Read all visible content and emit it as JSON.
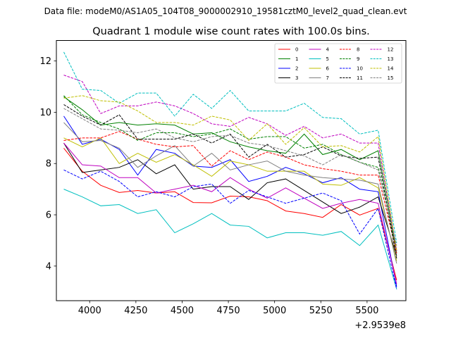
{
  "chart_data": {
    "type": "line",
    "suptitle": "Data file: modeM0/AS1A05_104T08_9000002910_19581cztM0_level2_quad_clean.evt",
    "title": "Quadrant 1 module wise count rates with 100.0s bins.",
    "xlabel": "",
    "ylabel": "",
    "x_offset_label": "+2.9539e8",
    "xlim": [
      3820,
      5710
    ],
    "ylim": [
      2.65,
      12.8
    ],
    "xticks": [
      4000,
      4250,
      4500,
      4750,
      5000,
      5250,
      5500
    ],
    "yticks": [
      4,
      6,
      8,
      10,
      12
    ],
    "grid": false,
    "legend_position": "top-right",
    "x": [
      3860,
      3960,
      4060,
      4160,
      4260,
      4360,
      4460,
      4560,
      4660,
      4760,
      4860,
      4960,
      5060,
      5160,
      5260,
      5360,
      5460,
      5560,
      5660
    ],
    "series": [
      {
        "name": "0",
        "color": "#ff0000",
        "dash": "solid",
        "values": [
          8.6,
          7.7,
          7.15,
          6.87,
          6.95,
          6.85,
          6.9,
          6.48,
          6.47,
          6.73,
          6.7,
          6.55,
          6.15,
          6.05,
          5.9,
          6.4,
          5.99,
          6.25,
          3.45
        ]
      },
      {
        "name": "1",
        "color": "#008000",
        "dash": "solid",
        "values": [
          10.6,
          10.1,
          9.5,
          9.6,
          9.5,
          9.55,
          9.5,
          9.15,
          9.2,
          8.85,
          8.65,
          8.5,
          8.4,
          9.15,
          8.35,
          8.55,
          8.15,
          8.5,
          4.5
        ]
      },
      {
        "name": "2",
        "color": "#0000ff",
        "dash": "solid",
        "values": [
          9.85,
          8.75,
          8.95,
          8.55,
          7.55,
          8.55,
          8.4,
          7.9,
          7.85,
          8.15,
          7.3,
          7.5,
          7.85,
          7.6,
          7.25,
          7.45,
          7.0,
          6.9,
          3.2
        ]
      },
      {
        "name": "3",
        "color": "#000000",
        "dash": "solid",
        "values": [
          8.8,
          7.65,
          7.75,
          7.85,
          8.15,
          7.6,
          7.95,
          7.0,
          7.1,
          7.1,
          6.6,
          7.25,
          7.4,
          6.95,
          6.5,
          6.05,
          6.3,
          6.7,
          4.4
        ]
      },
      {
        "name": "4",
        "color": "#bf00bf",
        "dash": "solid",
        "values": [
          8.8,
          7.95,
          7.9,
          7.45,
          7.45,
          6.85,
          7.0,
          7.15,
          6.9,
          7.45,
          7.0,
          6.65,
          7.05,
          6.65,
          6.25,
          6.45,
          6.6,
          6.45,
          3.3
        ]
      },
      {
        "name": "5",
        "color": "#00bfbf",
        "dash": "solid",
        "values": [
          7.0,
          6.7,
          6.35,
          6.4,
          6.05,
          6.2,
          5.3,
          5.65,
          6.05,
          5.6,
          5.55,
          5.1,
          5.3,
          5.3,
          5.2,
          5.35,
          4.8,
          5.6,
          3.1
        ]
      },
      {
        "name": "6",
        "color": "#bfbf00",
        "dash": "solid",
        "values": [
          9.0,
          8.65,
          9.0,
          8.0,
          8.4,
          8.05,
          8.35,
          7.95,
          7.5,
          8.1,
          7.95,
          7.7,
          7.7,
          7.7,
          7.2,
          7.15,
          7.45,
          7.05,
          4.2
        ]
      },
      {
        "name": "7",
        "color": "#808080",
        "dash": "solid",
        "values": [
          9.6,
          8.85,
          8.9,
          8.6,
          7.85,
          8.3,
          8.7,
          7.9,
          8.4,
          7.75,
          7.95,
          8.1,
          7.7,
          7.55,
          7.45,
          7.4,
          7.35,
          7.2,
          4.1
        ]
      },
      {
        "name": "8",
        "color": "#ff0000",
        "dash": "dashed",
        "values": [
          8.9,
          9.0,
          9.0,
          9.25,
          8.95,
          8.75,
          8.65,
          8.7,
          7.9,
          8.5,
          8.15,
          8.45,
          8.25,
          7.95,
          7.8,
          7.7,
          7.55,
          7.55,
          4.5
        ]
      },
      {
        "name": "9",
        "color": "#008000",
        "dash": "dashed",
        "values": [
          10.65,
          9.9,
          9.6,
          9.35,
          8.9,
          9.2,
          9.2,
          9.05,
          9.15,
          9.35,
          8.95,
          9.05,
          9.05,
          8.6,
          8.75,
          8.35,
          8.05,
          7.85,
          4.6
        ]
      },
      {
        "name": "10",
        "color": "#0000ff",
        "dash": "dashed",
        "values": [
          7.75,
          7.4,
          7.7,
          7.3,
          6.7,
          6.9,
          6.7,
          7.1,
          7.2,
          6.45,
          6.95,
          6.7,
          6.45,
          6.65,
          6.85,
          6.55,
          5.25,
          6.25,
          3.1
        ]
      },
      {
        "name": "11",
        "color": "#000000",
        "dash": "dashed",
        "values": [
          10.3,
          9.85,
          9.5,
          9.9,
          8.95,
          8.95,
          8.95,
          9.15,
          8.8,
          9.15,
          8.25,
          8.75,
          8.25,
          8.35,
          8.65,
          8.3,
          8.2,
          8.25,
          4.3
        ]
      },
      {
        "name": "12",
        "color": "#bf00bf",
        "dash": "dashed",
        "values": [
          11.45,
          11.2,
          9.95,
          10.25,
          10.25,
          10.4,
          10.25,
          9.95,
          9.55,
          9.45,
          9.8,
          9.55,
          9.1,
          9.45,
          9.0,
          9.15,
          8.8,
          8.8,
          4.6
        ]
      },
      {
        "name": "13",
        "color": "#00bfbf",
        "dash": "dashed",
        "values": [
          12.35,
          10.9,
          10.85,
          10.35,
          10.75,
          10.75,
          9.85,
          10.7,
          10.15,
          10.85,
          10.05,
          10.05,
          10.05,
          10.35,
          9.8,
          9.75,
          9.15,
          9.3,
          4.9
        ]
      },
      {
        "name": "14",
        "color": "#bfbf00",
        "dash": "dashed",
        "values": [
          10.55,
          10.65,
          10.45,
          10.4,
          10.05,
          9.6,
          9.6,
          9.5,
          9.85,
          9.7,
          8.9,
          9.55,
          8.75,
          9.4,
          8.65,
          8.7,
          8.45,
          9.05,
          4.6
        ]
      },
      {
        "name": "15",
        "color": "#808080",
        "dash": "dashed",
        "values": [
          10.15,
          9.75,
          9.35,
          9.3,
          9.2,
          9.35,
          9.0,
          8.85,
          9.05,
          9.1,
          8.8,
          8.7,
          8.5,
          8.3,
          7.95,
          8.35,
          8.05,
          7.75,
          4.8
        ]
      }
    ]
  }
}
